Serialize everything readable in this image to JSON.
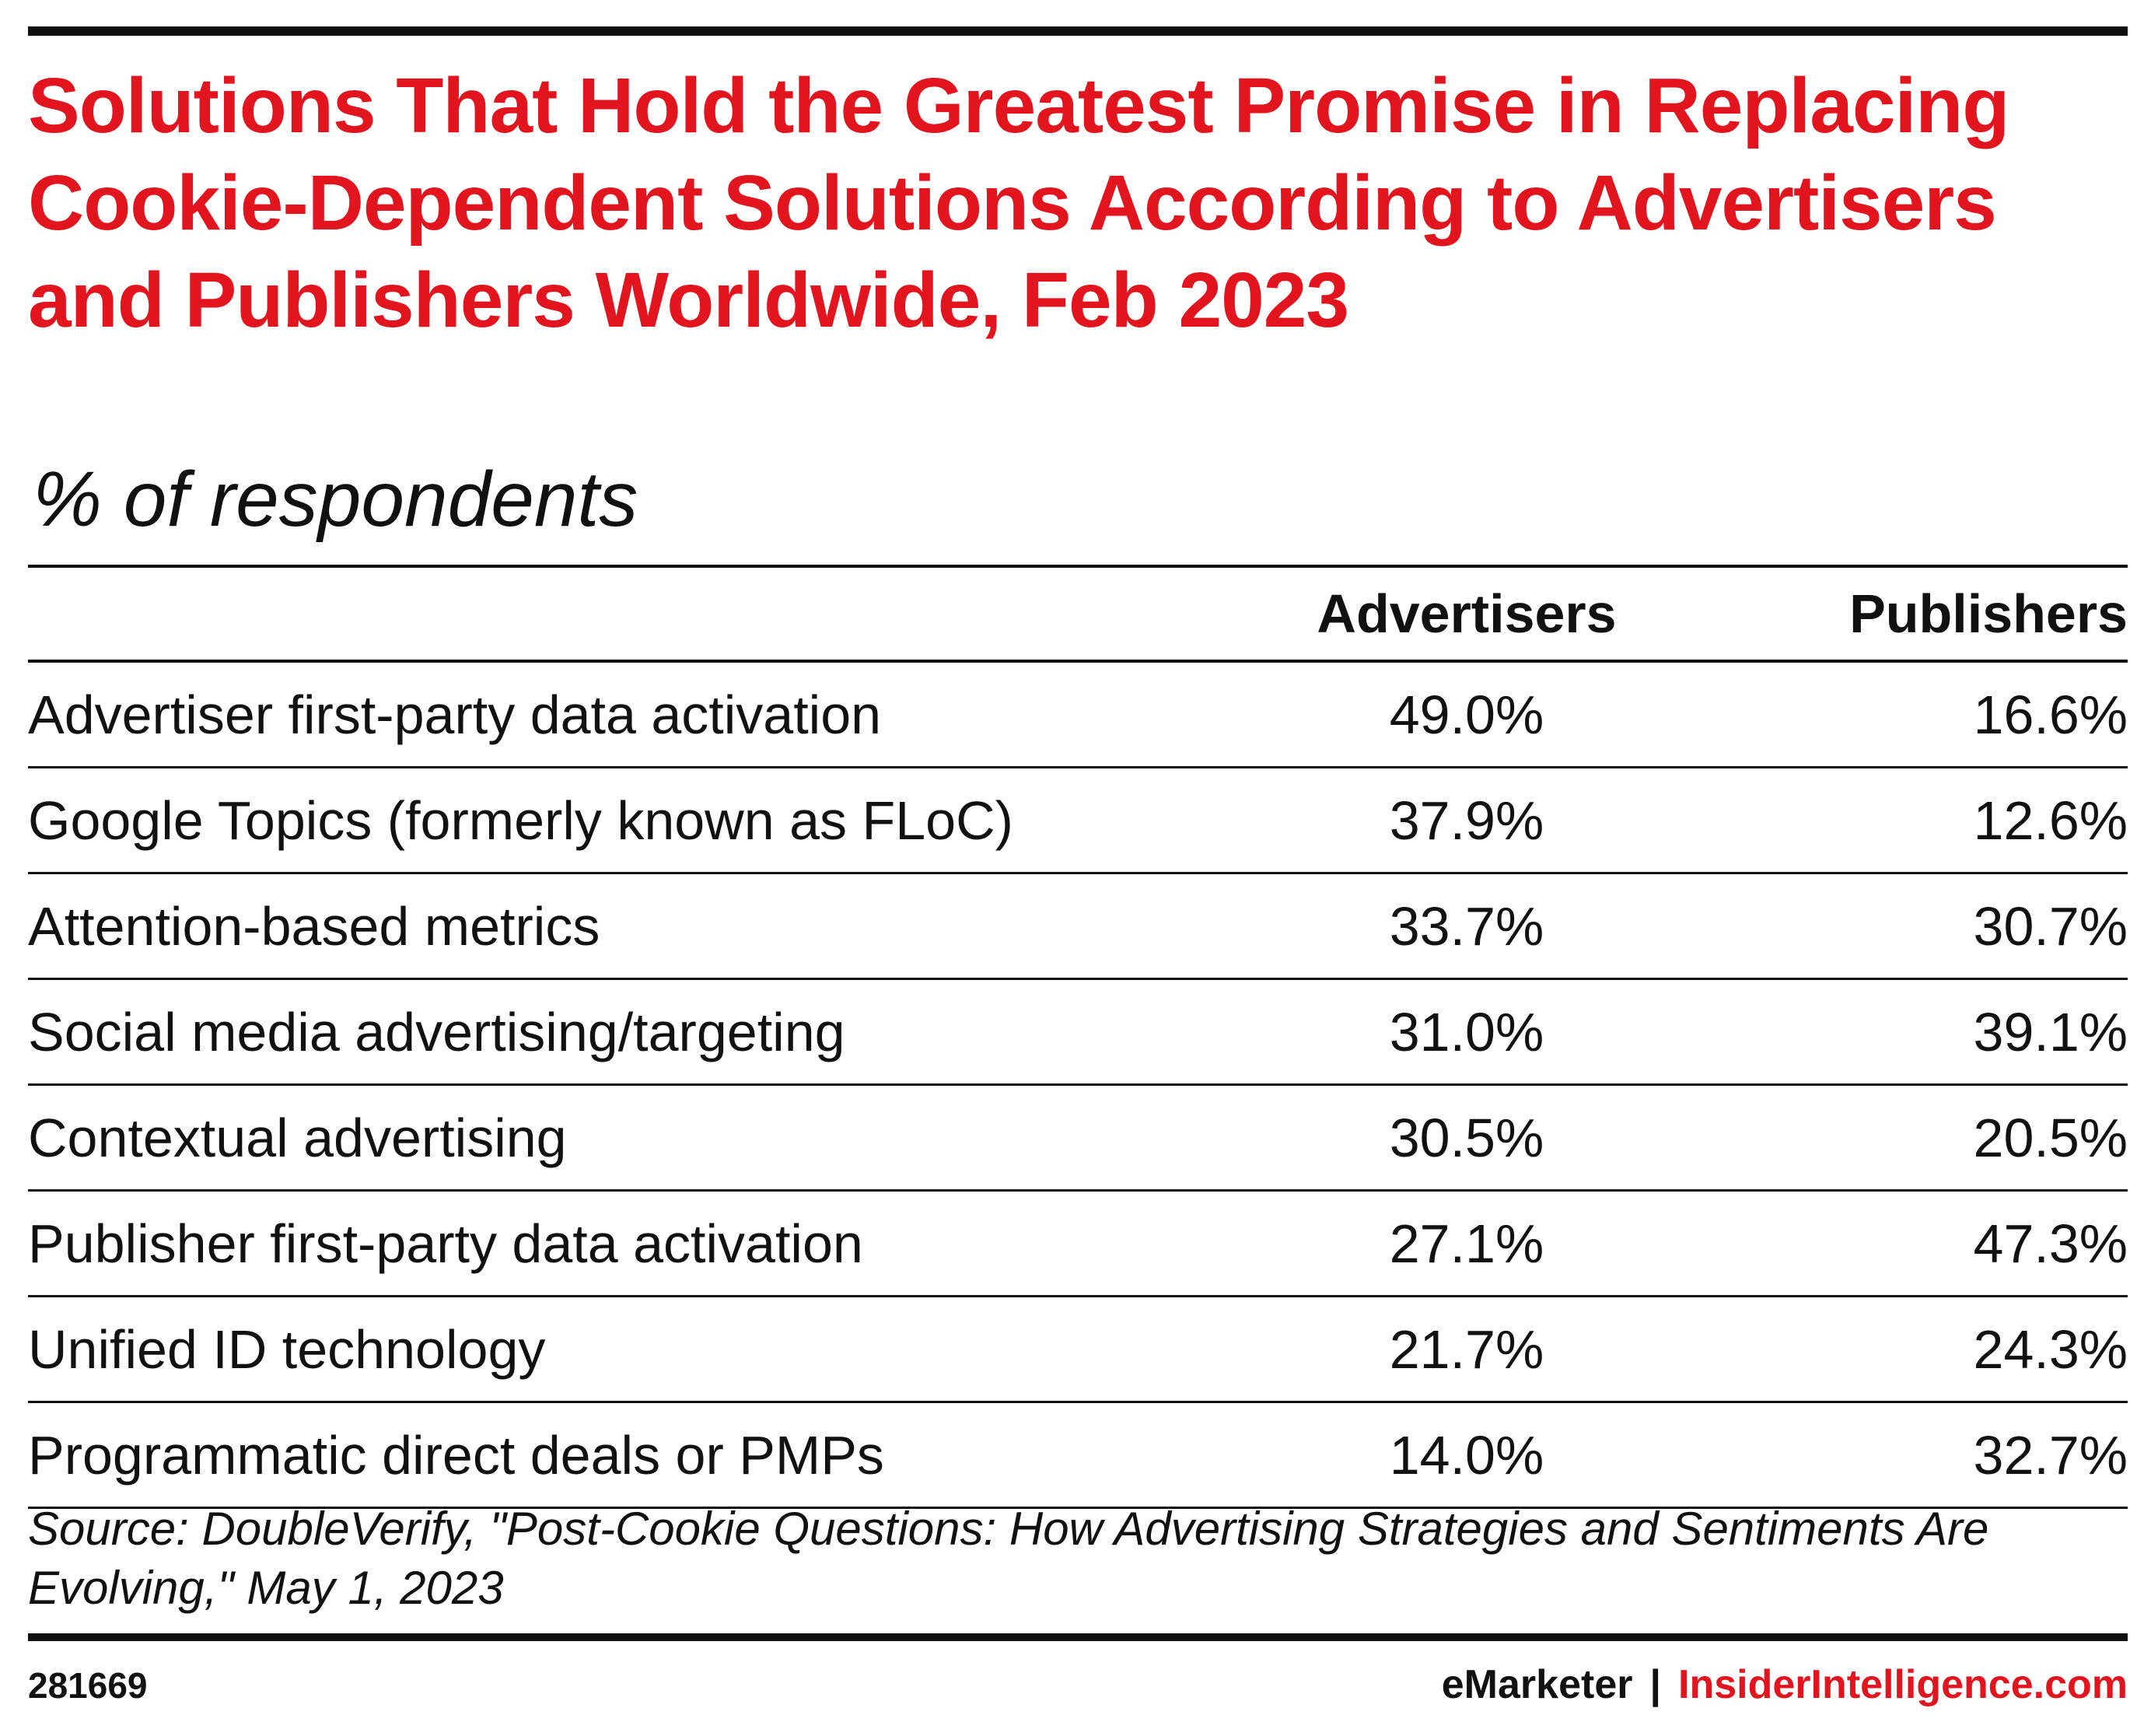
{
  "header": {
    "title": "Solutions That Hold the Greatest Promise in Replacing Cookie-Dependent Solutions According to Advertisers and Publishers Worldwide, Feb 2023",
    "subtitle": "% of respondents"
  },
  "chart_data": {
    "type": "table",
    "title": "Solutions That Hold the Greatest Promise in Replacing Cookie-Dependent Solutions According to Advertisers and Publishers Worldwide, Feb 2023",
    "subtitle": "% of respondents",
    "columns": [
      "Advertisers",
      "Publishers"
    ],
    "rows": [
      {
        "label": "Advertiser first-party data activation",
        "advertisers": "49.0%",
        "publishers": "16.6%"
      },
      {
        "label": "Google Topics (formerly known as FLoC)",
        "advertisers": "37.9%",
        "publishers": "12.6%"
      },
      {
        "label": "Attention-based metrics",
        "advertisers": "33.7%",
        "publishers": "30.7%"
      },
      {
        "label": "Social media advertising/targeting",
        "advertisers": "31.0%",
        "publishers": "39.1%"
      },
      {
        "label": "Contextual advertising",
        "advertisers": "30.5%",
        "publishers": "20.5%"
      },
      {
        "label": "Publisher first-party data activation",
        "advertisers": "27.1%",
        "publishers": "47.3%"
      },
      {
        "label": "Unified ID technology",
        "advertisers": "21.7%",
        "publishers": "24.3%"
      },
      {
        "label": "Programmatic direct deals or PMPs",
        "advertisers": "14.0%",
        "publishers": "32.7%"
      }
    ],
    "series": [
      {
        "name": "Advertisers",
        "values": [
          49.0,
          37.9,
          33.7,
          31.0,
          30.5,
          27.1,
          21.7,
          14.0
        ]
      },
      {
        "name": "Publishers",
        "values": [
          16.6,
          12.6,
          30.7,
          39.1,
          20.5,
          47.3,
          24.3,
          32.7
        ]
      }
    ]
  },
  "footer": {
    "source": "Source: DoubleVerify, \"Post-Cookie Questions: How Advertising Strategies and Sentiments Are Evolving,\" May 1, 2023",
    "chart_id": "281669",
    "brand": "eMarketer",
    "separator": "|",
    "site": "InsiderIntelligence.com"
  },
  "colors": {
    "accent": "#e2141e",
    "text": "#111111",
    "background": "#ffffff"
  }
}
